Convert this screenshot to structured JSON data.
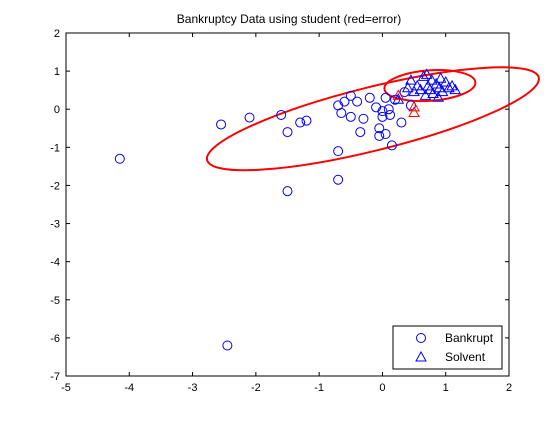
{
  "chart_data": {
    "type": "scatter",
    "title": "Bankruptcy Data using student (red=error)",
    "xlabel": "",
    "ylabel": "",
    "xlim": [
      -5,
      2
    ],
    "ylim": [
      -7,
      2
    ],
    "xticks": [
      "-5",
      "-4",
      "-3",
      "-2",
      "-1",
      "0",
      "1",
      "2"
    ],
    "yticks": [
      "2",
      "1",
      "0",
      "-1",
      "-2",
      "-3",
      "-4",
      "-5",
      "-6",
      "-7"
    ],
    "grid": false,
    "legend_position": "bottom-right",
    "colors": {
      "correct": "#0000ff",
      "error": "#ff0000",
      "axis": "#000000"
    },
    "series": [
      {
        "name": "Bankrupt",
        "marker": "circle",
        "points": [
          [
            -4.15,
            -1.3
          ],
          [
            -2.45,
            -6.2
          ],
          [
            -2.55,
            -0.4
          ],
          [
            -2.1,
            -0.22
          ],
          [
            -1.6,
            -0.15
          ],
          [
            -1.5,
            -0.6
          ],
          [
            -1.5,
            -2.15
          ],
          [
            -1.3,
            -0.35
          ],
          [
            -1.2,
            -0.3
          ],
          [
            -0.7,
            -1.1
          ],
          [
            -0.7,
            -1.85
          ],
          [
            -0.7,
            0.1
          ],
          [
            -0.6,
            0.2
          ],
          [
            -0.65,
            -0.1
          ],
          [
            -0.5,
            0.35
          ],
          [
            -0.5,
            -0.2
          ],
          [
            -0.4,
            0.2
          ],
          [
            -0.35,
            -0.6
          ],
          [
            -0.3,
            -0.25
          ],
          [
            -0.2,
            0.3
          ],
          [
            -0.1,
            0.05
          ],
          [
            -0.05,
            -0.5
          ],
          [
            -0.05,
            -0.7
          ],
          [
            0.0,
            -0.2
          ],
          [
            0.0,
            -0.05
          ],
          [
            0.05,
            0.3
          ],
          [
            0.05,
            -0.65
          ],
          [
            0.1,
            0.0
          ],
          [
            0.12,
            -0.15
          ],
          [
            0.15,
            -0.95
          ],
          [
            0.2,
            0.25
          ],
          [
            0.3,
            -0.35
          ],
          [
            0.35,
            0.45
          ],
          [
            0.45,
            0.1
          ]
        ]
      },
      {
        "name": "Solvent",
        "marker": "triangle",
        "points": [
          [
            0.25,
            0.25
          ],
          [
            0.4,
            0.55
          ],
          [
            0.45,
            0.75
          ],
          [
            0.5,
            0.45
          ],
          [
            0.55,
            0.6
          ],
          [
            0.6,
            0.5
          ],
          [
            0.65,
            0.85
          ],
          [
            0.7,
            0.9
          ],
          [
            0.72,
            0.6
          ],
          [
            0.75,
            0.5
          ],
          [
            0.78,
            0.75
          ],
          [
            0.8,
            0.4
          ],
          [
            0.85,
            0.65
          ],
          [
            0.9,
            0.55
          ],
          [
            0.92,
            0.8
          ],
          [
            0.95,
            0.45
          ],
          [
            1.0,
            0.7
          ],
          [
            1.05,
            0.55
          ],
          [
            1.1,
            0.6
          ],
          [
            1.15,
            0.5
          ],
          [
            0.68,
            0.35
          ],
          [
            0.88,
            0.3
          ]
        ]
      }
    ],
    "errors": [
      {
        "marker": "triangle",
        "x": 0.5,
        "y": -0.1
      },
      {
        "marker": "triangle",
        "x": 0.5,
        "y": 0.05
      },
      {
        "marker": "triangle",
        "x": 0.25,
        "y": 0.35
      }
    ],
    "ellipses": [
      {
        "cx": -0.15,
        "cy": -0.25,
        "rx": 2.7,
        "ry": 0.83,
        "rotation_deg": -14
      },
      {
        "cx": 0.75,
        "cy": 0.62,
        "rx": 0.72,
        "ry": 0.4,
        "rotation_deg": -4
      }
    ]
  }
}
